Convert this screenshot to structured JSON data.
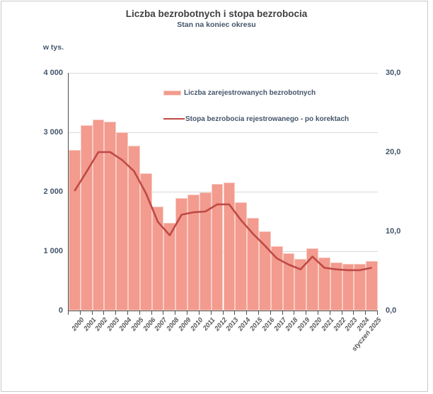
{
  "chart_data": {
    "type": "bar",
    "title": "Liczba bezrobotnych i stopa bezrobocia",
    "subtitle": "Stan na koniec okresu",
    "unit_label": "w tys.",
    "categories": [
      "2000",
      "2001",
      "2002",
      "2003",
      "2004",
      "2005",
      "2006",
      "2007",
      "2008",
      "2009",
      "2010",
      "2011",
      "2012",
      "2013",
      "2014",
      "2015",
      "2016",
      "2017",
      "2018",
      "2019",
      "2020",
      "2021",
      "2022",
      "2023",
      "2024",
      "styczeń 2025"
    ],
    "series": [
      {
        "name": "Liczba zarejestrowanych bezrobotnych",
        "type": "bar",
        "axis": "left",
        "values": [
          2702.6,
          3115.1,
          3217.0,
          3175.7,
          2999.6,
          2773.0,
          2309.4,
          1746.6,
          1473.8,
          1892.7,
          1954.7,
          1982.7,
          2136.8,
          2157.9,
          1825.2,
          1563.3,
          1335.2,
          1081.7,
          968.9,
          866.4,
          1046.4,
          895.2,
          812.3,
          788.2,
          786.8,
          837.1
        ]
      },
      {
        "name": "Stopa bezrobocia rejestrowanego - po korektach",
        "type": "line",
        "axis": "right",
        "values": [
          15.1,
          17.5,
          20.0,
          20.0,
          19.0,
          17.6,
          14.8,
          11.2,
          9.5,
          12.1,
          12.4,
          12.5,
          13.4,
          13.4,
          11.4,
          9.7,
          8.2,
          6.6,
          5.8,
          5.2,
          6.8,
          5.4,
          5.2,
          5.1,
          5.1,
          5.4
        ]
      }
    ],
    "y_left": {
      "min": 0,
      "max": 4000,
      "tick_values": [
        0,
        1000,
        2000,
        3000,
        4000
      ],
      "tick_labels": [
        "0",
        "1 000",
        "2 000",
        "3 000",
        "4 000"
      ]
    },
    "y_right": {
      "min": 0,
      "max": 30,
      "tick_values": [
        0,
        10,
        20,
        30
      ],
      "tick_labels": [
        "0,0",
        "10,0",
        "20,0",
        "30,0"
      ]
    },
    "grid": true,
    "legend_position": "inside-top-left",
    "colors": {
      "bar_fill": "#F29B8E",
      "bar_border": "#F7CDC5",
      "line": "#BF4A45",
      "grid": "#D9D9D9",
      "axis": "#4D4D4D",
      "axis_value_labels": "#44546A",
      "category_labels": "#595959",
      "title_text": "#404040"
    }
  }
}
